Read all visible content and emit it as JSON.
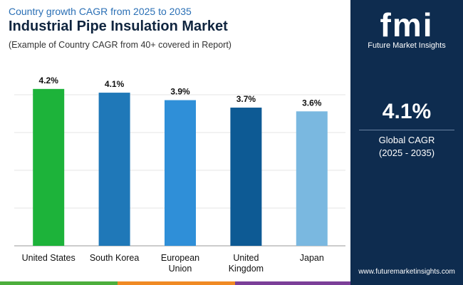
{
  "chart_data": {
    "type": "bar",
    "kicker": "Country growth CAGR from 2025 to 2035",
    "title": "Industrial Pipe Insulation Market",
    "subtitle": "(Example of Country CAGR from 40+ covered in Report)",
    "categories": [
      "United States",
      "South Korea",
      "European Union",
      "United Kingdom",
      "Japan"
    ],
    "values": [
      4.2,
      4.1,
      3.9,
      3.7,
      3.6
    ],
    "value_labels": [
      "4.2%",
      "4.1%",
      "3.9%",
      "3.7%",
      "3.6%"
    ],
    "colors": [
      "#1db33a",
      "#1f78b8",
      "#2f8fd8",
      "#0d5a94",
      "#7ab8e0"
    ],
    "ylim": [
      0,
      4.75
    ]
  },
  "sidebar": {
    "logo": "fmi",
    "brand": "Future Market Insights",
    "cagr": "4.1%",
    "cagr_label": "Global CAGR",
    "period": "(2025 - 2035)",
    "website": "www.futuremarketinsights.com"
  }
}
